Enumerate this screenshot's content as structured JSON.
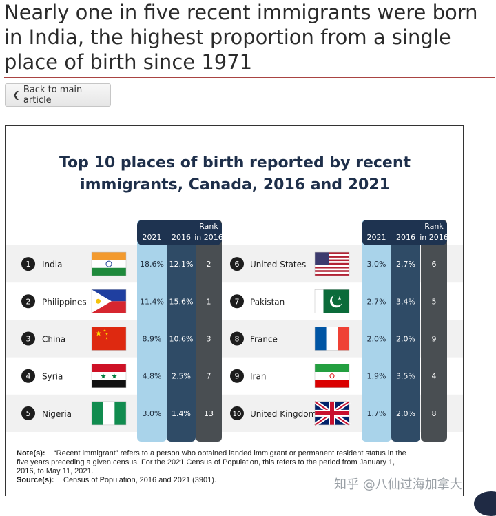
{
  "page": {
    "title": "Nearly one in five recent immigrants were born in India, the highest proportion from a single place of birth since 1971",
    "back_label": "Back to main article"
  },
  "chart_data": {
    "type": "table",
    "title_line1": "Top 10 places of birth reported by recent",
    "title_line2": "immigrants, Canada, 2016 and 2021",
    "columns": [
      "2021",
      "2016",
      "Rank in 2016"
    ],
    "col_header": {
      "y2021": "2021",
      "y2016": "2016",
      "rank_l1": "Rank",
      "rank_l2": "in 2016"
    },
    "rows": [
      {
        "rank": "1",
        "place": "India",
        "v2021": "18.6%",
        "v2016": "12.1%",
        "rank2016": "2",
        "flag": "india-flag"
      },
      {
        "rank": "2",
        "place": "Philippines",
        "v2021": "11.4%",
        "v2016": "15.6%",
        "rank2016": "1",
        "flag": "philippines-flag"
      },
      {
        "rank": "3",
        "place": "China",
        "v2021": "8.9%",
        "v2016": "10.6%",
        "rank2016": "3",
        "flag": "china-flag"
      },
      {
        "rank": "4",
        "place": "Syria",
        "v2021": "4.8%",
        "v2016": "2.5%",
        "rank2016": "7",
        "flag": "syria-flag"
      },
      {
        "rank": "5",
        "place": "Nigeria",
        "v2021": "3.0%",
        "v2016": "1.4%",
        "rank2016": "13",
        "flag": "nigeria-flag"
      },
      {
        "rank": "6",
        "place": "United States",
        "v2021": "3.0%",
        "v2016": "2.7%",
        "rank2016": "6",
        "flag": "usa-flag"
      },
      {
        "rank": "7",
        "place": "Pakistan",
        "v2021": "2.7%",
        "v2016": "3.4%",
        "rank2016": "5",
        "flag": "pakistan-flag"
      },
      {
        "rank": "8",
        "place": "France",
        "v2021": "2.0%",
        "v2016": "2.0%",
        "rank2016": "9",
        "flag": "france-flag"
      },
      {
        "rank": "9",
        "place": "Iran",
        "v2021": "1.9%",
        "v2016": "3.5%",
        "rank2016": "4",
        "flag": "iran-flag"
      },
      {
        "rank": "10",
        "place": "United Kingdom",
        "v2021": "1.7%",
        "v2016": "2.0%",
        "rank2016": "8",
        "flag": "uk-flag"
      }
    ],
    "notes_label": "Note(s):",
    "notes_lines": [
      "“Recent immigrant” refers to a person who obtained landed immigrant or permanent resident status in the",
      "five years preceding a given census. For the 2021 Census of Population, this refers to the period from January 1,",
      "2016, to May 11, 2021."
    ],
    "source_label": "Source(s):",
    "source_text": "Census of Population, 2016 and 2021 (3901).",
    "colors": {
      "col2021": "#a9d3ea",
      "col2016": "#2f4b66",
      "colRank": "#494e52",
      "title": "#1e2f4a",
      "stripe": "#f1f1f1"
    }
  },
  "watermark": "知乎 @八仙过海加拿大"
}
